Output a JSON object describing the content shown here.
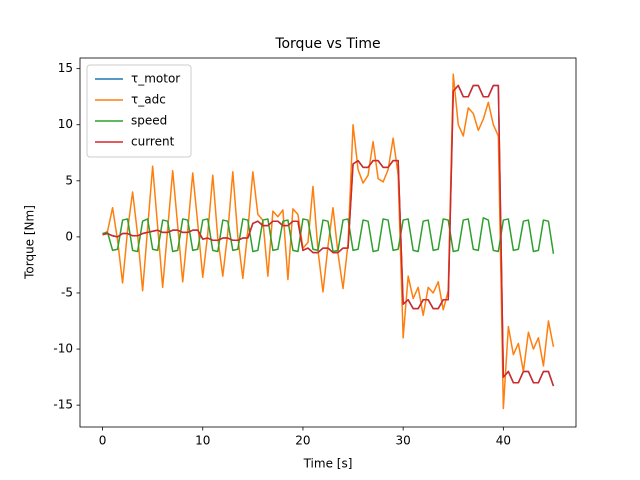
{
  "chart_data": {
    "type": "line",
    "title": "Torque vs Time",
    "x_label": "Time [s]",
    "y_label": "Torque [Nm]",
    "xlim": [
      -2.25,
      47.25
    ],
    "ylim": [
      -16.95,
      15.95
    ],
    "xticks": [
      0,
      10,
      20,
      30,
      40
    ],
    "yticks": [
      -15,
      -10,
      -5,
      0,
      5,
      10,
      15
    ],
    "legend": "upper left",
    "grid": false,
    "x": [
      0,
      0.5,
      1,
      1.5,
      2,
      2.5,
      3,
      3.5,
      4,
      4.5,
      5,
      5.5,
      6,
      6.5,
      7,
      7.5,
      8,
      8.5,
      9,
      9.5,
      10,
      10.5,
      11,
      11.5,
      12,
      12.5,
      13,
      13.5,
      14,
      14.5,
      15,
      15.5,
      16,
      16.5,
      17,
      17.5,
      18,
      18.5,
      19,
      19.5,
      20,
      20.5,
      21,
      21.5,
      22,
      22.5,
      23,
      23.5,
      24,
      24.5,
      25,
      25.5,
      26,
      26.5,
      27,
      27.5,
      28,
      28.5,
      29,
      29.5,
      30,
      30.5,
      31,
      31.5,
      32,
      32.5,
      33,
      33.5,
      34,
      34.5,
      35,
      35.5,
      36,
      36.5,
      37,
      37.5,
      38,
      38.5,
      39,
      39.5,
      40,
      40.5,
      41,
      41.5,
      42,
      42.5,
      43,
      43.5,
      44,
      44.5,
      45
    ],
    "series": [
      {
        "name": "τ_motor",
        "color": "#1f77b4",
        "values": [
          0.2,
          0.3,
          0.1,
          0.0,
          0.3,
          0.3,
          0.1,
          0.1,
          0.3,
          0.4,
          0.5,
          0.6,
          0.4,
          0.4,
          0.6,
          0.6,
          0.4,
          0.4,
          0.6,
          0.6,
          -0.2,
          -0.1,
          -0.3,
          -0.3,
          -0.1,
          -0.1,
          -0.3,
          -0.3,
          -0.1,
          -0.1,
          1.2,
          1.4,
          1.0,
          1.0,
          1.4,
          1.4,
          1.0,
          1.0,
          1.4,
          1.4,
          -1.2,
          -1.0,
          -1.4,
          -1.4,
          -1.0,
          -1.0,
          -1.4,
          -1.4,
          -1.0,
          -1.0,
          6.5,
          6.8,
          6.2,
          6.2,
          6.8,
          6.8,
          6.2,
          6.2,
          6.8,
          6.8,
          -6.0,
          -5.6,
          -6.4,
          -6.4,
          -5.6,
          -5.6,
          -6.4,
          -6.4,
          -5.6,
          -5.6,
          13.0,
          13.5,
          12.5,
          12.5,
          13.5,
          13.5,
          12.5,
          12.5,
          13.5,
          13.5,
          -12.5,
          -12.0,
          -13.0,
          -13.0,
          -12.0,
          -12.0,
          -13.0,
          -13.0,
          -12.0,
          -12.0,
          -13.3
        ]
      },
      {
        "name": "τ_adc",
        "color": "#ff7f0e",
        "values": [
          0.2,
          0.5,
          2.6,
          -0.3,
          -4.1,
          0.6,
          4.0,
          0.2,
          -4.8,
          0.8,
          6.3,
          0.9,
          -4.5,
          0.7,
          5.9,
          1.0,
          -4.0,
          0.6,
          5.7,
          1.2,
          -3.6,
          0.3,
          5.5,
          -0.1,
          -3.5,
          0.4,
          5.8,
          0.0,
          -3.7,
          0.6,
          5.8,
          2.0,
          1.5,
          -3.5,
          2.3,
          1.8,
          2.4,
          -3.8,
          2.5,
          2.0,
          -1.0,
          -0.5,
          4.5,
          -1.2,
          -4.9,
          -0.8,
          2.6,
          -1.5,
          -4.6,
          -0.6,
          10.0,
          6.0,
          4.8,
          5.5,
          8.5,
          5.2,
          4.9,
          6.0,
          8.8,
          5.5,
          -9.0,
          -3.5,
          -5.5,
          -4.5,
          -7.0,
          -4.5,
          -5.0,
          -4.0,
          -6.5,
          -4.8,
          14.5,
          10.0,
          9.0,
          11.5,
          11.0,
          9.5,
          10.5,
          12.0,
          10.0,
          9.0,
          -15.3,
          -8.0,
          -10.5,
          -9.5,
          -12.0,
          -8.5,
          -10.0,
          -9.0,
          -11.5,
          -7.5,
          -9.8
        ]
      },
      {
        "name": "speed",
        "color": "#2ca02c",
        "values": [
          0.3,
          0.4,
          -1.2,
          -1.1,
          1.5,
          1.6,
          -1.2,
          -1.3,
          1.4,
          1.6,
          -1.1,
          -1.2,
          1.5,
          1.4,
          -1.3,
          -1.2,
          1.6,
          1.5,
          -1.2,
          -1.1,
          1.5,
          1.6,
          -1.2,
          -1.3,
          1.5,
          1.4,
          -1.2,
          -1.1,
          1.6,
          1.5,
          -1.3,
          -1.2,
          1.5,
          1.6,
          -1.2,
          -1.1,
          1.4,
          1.5,
          -1.2,
          -1.3,
          1.6,
          1.5,
          -1.1,
          -1.2,
          1.5,
          1.4,
          -1.3,
          -1.2,
          1.5,
          1.6,
          -1.2,
          -1.1,
          1.5,
          1.4,
          -1.3,
          -1.2,
          1.6,
          1.5,
          -1.2,
          -1.1,
          1.5,
          1.6,
          -1.2,
          -1.3,
          1.4,
          1.5,
          -1.2,
          -1.1,
          1.6,
          1.5,
          -1.3,
          -1.2,
          1.5,
          1.6,
          -1.1,
          -1.2,
          1.7,
          1.5,
          -1.2,
          -1.3,
          1.5,
          1.6,
          -1.2,
          -1.1,
          1.4,
          1.5,
          -1.3,
          -1.2,
          1.5,
          1.4,
          -1.5
        ]
      },
      {
        "name": "current",
        "color": "#d62728",
        "values": [
          0.2,
          0.3,
          0.1,
          0.0,
          0.3,
          0.3,
          0.1,
          0.1,
          0.3,
          0.4,
          0.5,
          0.6,
          0.4,
          0.4,
          0.6,
          0.6,
          0.4,
          0.4,
          0.6,
          0.6,
          -0.2,
          -0.1,
          -0.3,
          -0.3,
          -0.1,
          -0.1,
          -0.3,
          -0.3,
          -0.1,
          -0.1,
          1.2,
          1.4,
          1.0,
          1.0,
          1.4,
          1.4,
          1.0,
          1.0,
          1.4,
          1.4,
          -1.2,
          -1.0,
          -1.4,
          -1.4,
          -1.0,
          -1.0,
          -1.4,
          -1.4,
          -1.0,
          -1.0,
          6.5,
          6.8,
          6.2,
          6.2,
          6.8,
          6.8,
          6.2,
          6.2,
          6.8,
          6.8,
          -6.0,
          -5.6,
          -6.4,
          -6.4,
          -5.6,
          -5.6,
          -6.4,
          -6.4,
          -5.6,
          -5.6,
          13.0,
          13.5,
          12.5,
          12.5,
          13.5,
          13.5,
          12.5,
          12.5,
          13.5,
          13.5,
          -12.5,
          -12.0,
          -13.0,
          -13.0,
          -12.0,
          -12.0,
          -13.0,
          -13.0,
          -12.0,
          -12.0,
          -13.3
        ]
      }
    ]
  }
}
